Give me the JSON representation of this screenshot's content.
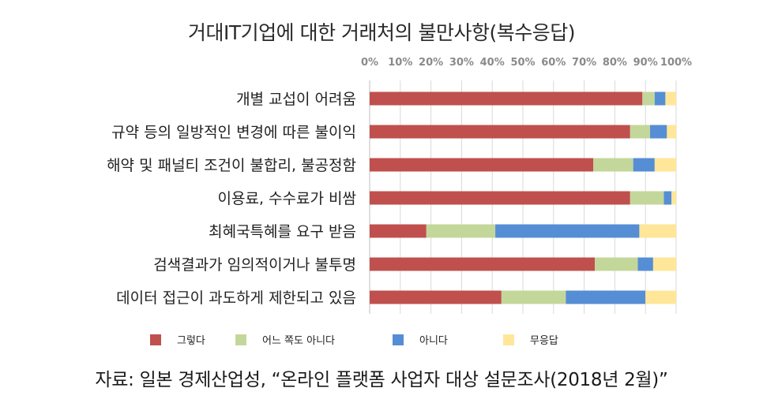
{
  "title": "거대IT기업에 대한 거래처의 불만사항(복수응답)",
  "source": "자료: 일본 경제산업성, “온라인 플랫폼 사업자 대상 설문조사(2018년 2월)”",
  "chart_data": {
    "type": "bar",
    "orientation": "horizontal",
    "stacked": true,
    "x_ticks": [
      "0%",
      "10%",
      "20%",
      "30%",
      "40%",
      "50%",
      "60%",
      "70%",
      "80%",
      "90%",
      "100%"
    ],
    "xlim": [
      0,
      100
    ],
    "grid": true,
    "legend_position": "bottom",
    "categories": [
      "개별 교섭이 어려움",
      "규약 등의 일방적인 변경에 따른 불이익",
      "해약 및 패널티 조건이 불합리, 불공정함",
      "이용료, 수수료가 비쌈",
      "최혜국특혜를 요구 받음",
      "검색결과가 임의적이거나 불투명",
      "데이터 접근이 과도하게 제한되고 있음"
    ],
    "series": [
      {
        "name": "그렇다",
        "color": "#c0504d",
        "values": [
          89,
          85,
          73,
          85,
          18.5,
          73.5,
          43
        ]
      },
      {
        "name": "어느 쪽도 아니다",
        "color": "#c4d79b",
        "values": [
          4,
          6.5,
          13,
          11,
          22.5,
          14,
          21
        ]
      },
      {
        "name": "아니다",
        "color": "#558ed5",
        "values": [
          3.5,
          5.5,
          7,
          2.5,
          47,
          5,
          26
        ]
      },
      {
        "name": "무응답",
        "color": "#ffe699",
        "values": [
          3.5,
          3,
          7,
          1.5,
          12,
          7.5,
          10
        ]
      }
    ]
  }
}
